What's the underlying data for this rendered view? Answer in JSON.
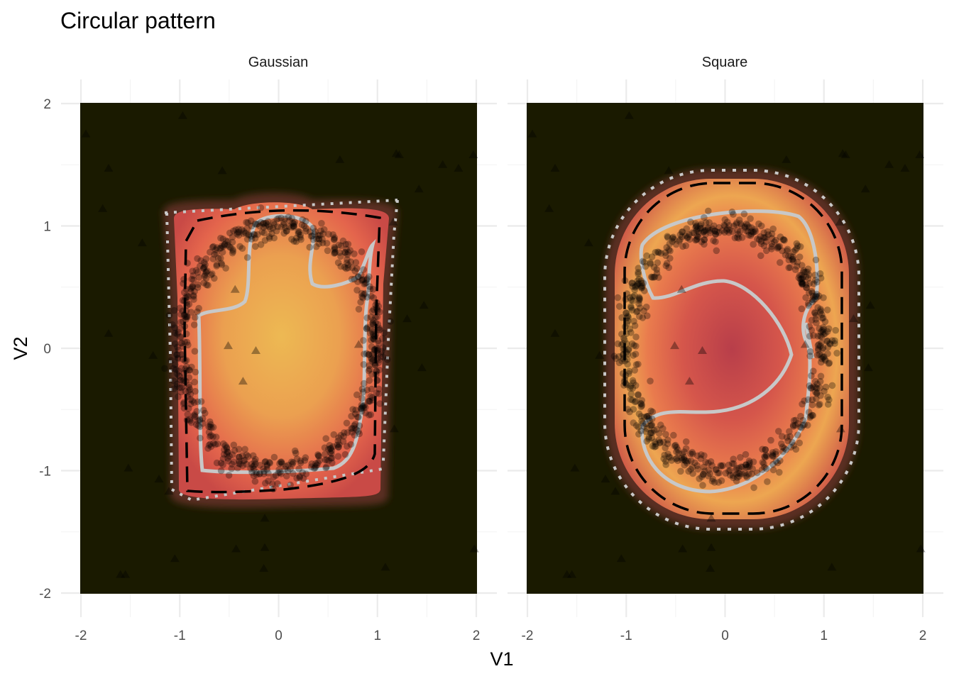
{
  "chart_data": {
    "type": "heatmap",
    "title": "Circular pattern",
    "xlabel": "V1",
    "ylabel": "V2",
    "xlim": [
      -2,
      2
    ],
    "ylim": [
      -2,
      2
    ],
    "x_ticks": [
      -2,
      -1,
      0,
      1,
      2
    ],
    "y_ticks": [
      -2,
      -1,
      0,
      1,
      2
    ],
    "grid": true,
    "legend": "none",
    "colors": {
      "background_fill": "#1a1a00",
      "low": "#b83e4a",
      "mid": "#e4654c",
      "high": "#edb953",
      "contour_gray": "#c8c8c8",
      "contour_black": "#000000",
      "points": "#000000"
    },
    "panels": [
      {
        "name": "Gaussian",
        "strip_label": "Gaussian",
        "surface": "high-density plateau peaking near (0, 0), support roughly V1 -1.1..1.1, V2 -1.25..1.25",
        "inlier_ring": {
          "center": [
            0.0,
            0.0
          ],
          "radius": 1.0,
          "n": 700,
          "noise_sd": 0.06
        },
        "outliers": [
          [
            -1.95,
            1.75
          ],
          [
            -1.78,
            1.14
          ],
          [
            -1.72,
            1.47
          ],
          [
            -1.38,
            0.86
          ],
          [
            -1.72,
            0.12
          ],
          [
            -1.27,
            -0.06
          ],
          [
            -1.52,
            -0.98
          ],
          [
            -1.6,
            -1.85
          ],
          [
            -1.55,
            -1.85
          ],
          [
            -0.97,
            1.9
          ],
          [
            -0.57,
            1.45
          ],
          [
            -0.44,
            0.48
          ],
          [
            -0.51,
            0.02
          ],
          [
            -0.23,
            -0.02
          ],
          [
            -0.36,
            -0.27
          ],
          [
            -0.43,
            -1.64
          ],
          [
            -0.14,
            -1.63
          ],
          [
            -0.15,
            -1.8
          ],
          [
            -0.14,
            -1.39
          ],
          [
            -1.05,
            -1.72
          ],
          [
            0.62,
            1.54
          ],
          [
            1.19,
            1.59
          ],
          [
            1.22,
            1.58
          ],
          [
            1.16,
            1.03
          ],
          [
            1.42,
            1.3
          ],
          [
            1.47,
            0.35
          ],
          [
            1.3,
            0.24
          ],
          [
            1.45,
            -0.16
          ],
          [
            0.81,
            0.03
          ],
          [
            1.17,
            -0.66
          ],
          [
            1.08,
            -1.79
          ],
          [
            1.98,
            -1.64
          ],
          [
            1.97,
            1.58
          ],
          [
            1.82,
            1.47
          ],
          [
            1.66,
            1.5
          ],
          [
            -1.21,
            -1.07
          ],
          [
            -1.11,
            -1.17
          ]
        ]
      },
      {
        "name": "Square",
        "strip_label": "Square",
        "surface": "rounded-rectangle density with a lower saddle at the center, support roughly V1 -1.2..1.3, V2 -1.45..1.45",
        "inlier_ring": {
          "center": [
            0.0,
            0.0
          ],
          "radius": 1.0,
          "n": 700,
          "noise_sd": 0.06
        },
        "outliers": [
          [
            -1.95,
            1.75
          ],
          [
            -1.78,
            1.14
          ],
          [
            -1.72,
            1.47
          ],
          [
            -1.38,
            0.86
          ],
          [
            -1.72,
            0.12
          ],
          [
            -1.27,
            -0.06
          ],
          [
            -1.52,
            -0.98
          ],
          [
            -1.6,
            -1.85
          ],
          [
            -1.55,
            -1.85
          ],
          [
            -0.97,
            1.9
          ],
          [
            -0.57,
            1.45
          ],
          [
            -0.44,
            0.48
          ],
          [
            -0.51,
            0.02
          ],
          [
            -0.23,
            -0.02
          ],
          [
            -0.36,
            -0.27
          ],
          [
            -0.43,
            -1.64
          ],
          [
            -0.14,
            -1.63
          ],
          [
            -0.15,
            -1.8
          ],
          [
            -0.14,
            -1.39
          ],
          [
            -1.05,
            -1.72
          ],
          [
            0.62,
            1.54
          ],
          [
            1.19,
            1.59
          ],
          [
            1.22,
            1.58
          ],
          [
            1.16,
            1.03
          ],
          [
            1.42,
            1.3
          ],
          [
            1.47,
            0.35
          ],
          [
            1.3,
            0.24
          ],
          [
            1.45,
            -0.16
          ],
          [
            0.81,
            0.03
          ],
          [
            1.17,
            -0.66
          ],
          [
            1.08,
            -1.79
          ],
          [
            1.98,
            -1.64
          ],
          [
            1.97,
            1.58
          ],
          [
            1.82,
            1.47
          ],
          [
            1.66,
            1.5
          ],
          [
            -1.21,
            -1.07
          ],
          [
            -1.11,
            -1.17
          ]
        ]
      }
    ]
  }
}
